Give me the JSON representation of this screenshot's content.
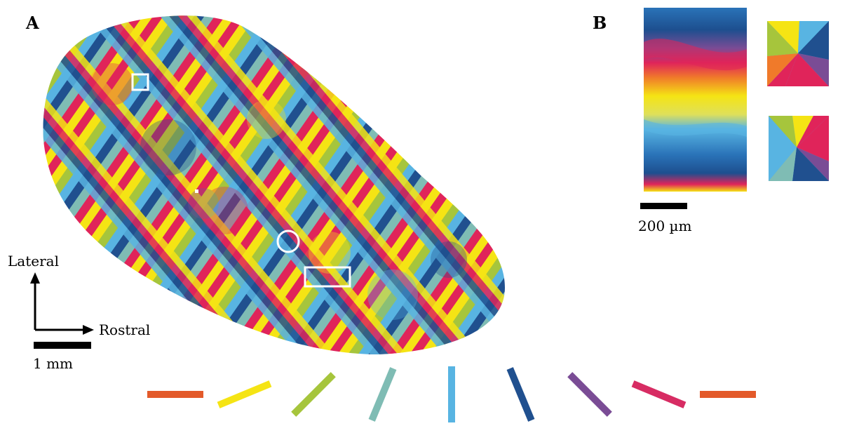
{
  "panels": {
    "a_label": "A",
    "b_label": "B"
  },
  "axes": {
    "lateral_label": "Lateral",
    "rostral_label": "Rostral"
  },
  "scale_bars": {
    "map_scale": "1 mm",
    "inset_scale": "200 µm"
  },
  "colors": {
    "red": "#e0245a",
    "yellow": "#f5e414",
    "green": "#a6c53c",
    "teal": "#7fbcb4",
    "lightblue": "#58b4e2",
    "darkblue": "#20508f",
    "purple": "#7a4c95",
    "magenta": "#d72c63",
    "orange": "#e35a2a"
  },
  "orientation_key": [
    {
      "color": "#e35a2a",
      "angle_deg": 0
    },
    {
      "color": "#f5e414",
      "angle_deg": -22.5
    },
    {
      "color": "#a6c53c",
      "angle_deg": -45
    },
    {
      "color": "#7fbcb4",
      "angle_deg": -67.5
    },
    {
      "color": "#58b4e2",
      "angle_deg": 90
    },
    {
      "color": "#20508f",
      "angle_deg": 67.5
    },
    {
      "color": "#7a4c95",
      "angle_deg": 45
    },
    {
      "color": "#d72c63",
      "angle_deg": 22.5
    },
    {
      "color": "#e35a2a",
      "angle_deg": 0
    }
  ]
}
